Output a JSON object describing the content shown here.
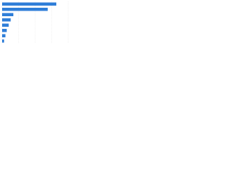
{
  "chart_data": {
    "type": "bar",
    "horizontal": true,
    "categories": [
      null,
      null,
      null,
      null,
      null,
      null,
      null,
      null
    ],
    "values": [
      82,
      69,
      17,
      13,
      10,
      7,
      5,
      3
    ],
    "color": "#2f7ed8",
    "xlim": [
      0,
      100
    ],
    "xticks": [
      0,
      25,
      50,
      75,
      100
    ],
    "grid": true
  }
}
